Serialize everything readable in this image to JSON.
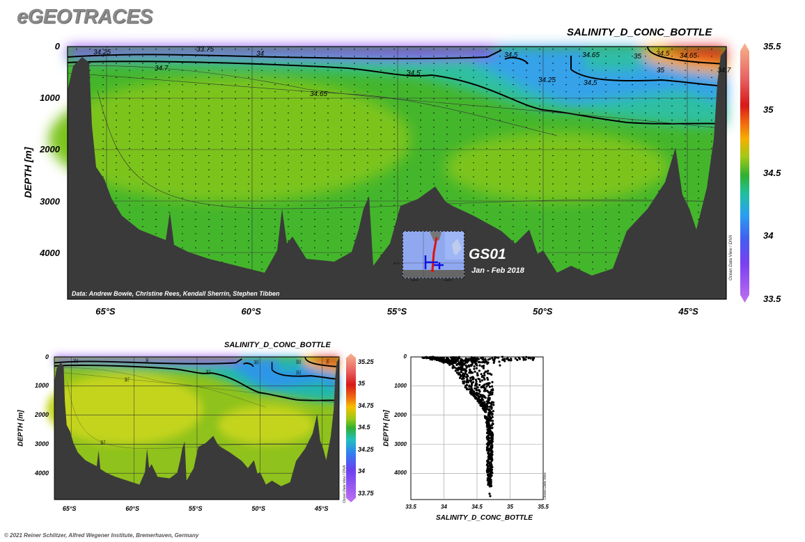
{
  "header": {
    "logo": "eGEOTRACES",
    "footer": "© 2021 Reiner Schlitzer, Alfred Wegener Institute, Bremerhaven, Germany"
  },
  "inset": {
    "cruise": "GS01",
    "dates": "Jan - Feb 2018",
    "lat_label": "60°S",
    "lon_labels": [
      "130°E",
      "150°E"
    ]
  },
  "chart_data": [
    {
      "type": "heatmap",
      "title": "SALINITY_D_CONC_BOTTLE",
      "xlabel": "",
      "ylabel": "DEPTH [m]",
      "x_ticks": [
        "65°S",
        "60°S",
        "55°S",
        "50°S",
        "45°S"
      ],
      "x_tick_values": [
        -65,
        -60,
        -55,
        -50,
        -45
      ],
      "xlim": [
        -66.3,
        -43.7
      ],
      "y_ticks": [
        0,
        1000,
        2000,
        3000,
        4000
      ],
      "ylim": [
        0,
        4900
      ],
      "colorbar": {
        "ticks": [
          "35.5",
          "35",
          "34.5",
          "34",
          "33.5"
        ],
        "range": [
          33.5,
          35.5
        ]
      },
      "contour_labels": [
        "34.25",
        "33.75",
        "34",
        "34.7",
        "34.5",
        "34.65",
        "34.5",
        "34.25",
        "34.5",
        "34.65",
        "34.5",
        "34.65",
        "35",
        "35",
        "34.7"
      ],
      "credit": "Data: Andrew Bowie, Christine Rees, Kendall Sherrin, Stephen Tibben",
      "watermark": "Ocean Data View / DIVA"
    },
    {
      "type": "heatmap",
      "title": "SALINITY_D_CONC_BOTTLE",
      "ylabel": "DEPTH [m]",
      "x_ticks": [
        "65°S",
        "60°S",
        "55°S",
        "50°S",
        "45°S"
      ],
      "x_tick_values": [
        -65,
        -60,
        -55,
        -50,
        -45
      ],
      "xlim": [
        -66.2,
        -43.6
      ],
      "y_ticks": [
        0,
        1000,
        2000,
        3000,
        4000
      ],
      "ylim": [
        0,
        4900
      ],
      "colorbar": {
        "ticks": [
          "35.25",
          "35",
          "34.75",
          "34.5",
          "34.25",
          "34",
          "33.75"
        ],
        "range": [
          33.625,
          35.375
        ]
      },
      "contour_labels": [
        "34.6",
        "34",
        "34.5",
        "34.7",
        "34.5",
        "34.6",
        "34.5",
        "35",
        "34.7"
      ],
      "watermark": "Ocean Data View / DIVA"
    },
    {
      "type": "scatter",
      "title": "",
      "xlabel": "SALINITY_D_CONC_BOTTLE",
      "ylabel": "DEPTH [m]",
      "x_ticks": [
        "33.5",
        "34",
        "34.5",
        "35",
        "35.5"
      ],
      "xlim": [
        33.5,
        35.5
      ],
      "y_ticks": [
        0,
        1000,
        2000,
        3000,
        4000
      ],
      "ylim": [
        0,
        4900
      ],
      "grid": true,
      "envelope": [
        {
          "depth": 0,
          "min": 33.6,
          "max": 35.35
        },
        {
          "depth": 100,
          "min": 33.9,
          "max": 34.78
        },
        {
          "depth": 300,
          "min": 34.1,
          "max": 34.76
        },
        {
          "depth": 600,
          "min": 34.22,
          "max": 34.76
        },
        {
          "depth": 1000,
          "min": 34.3,
          "max": 34.75
        },
        {
          "depth": 1500,
          "min": 34.5,
          "max": 34.75
        },
        {
          "depth": 1800,
          "min": 34.6,
          "max": 34.75
        },
        {
          "depth": 2500,
          "min": 34.65,
          "max": 34.74
        },
        {
          "depth": 4000,
          "min": 34.65,
          "max": 34.73
        },
        {
          "depth": 4450,
          "min": 34.66,
          "max": 34.72
        }
      ],
      "surface_branch": [
        {
          "depth": 50,
          "salinity": 35.3
        },
        {
          "depth": 100,
          "salinity": 35.15
        },
        {
          "depth": 200,
          "salinity": 34.95
        },
        {
          "depth": 300,
          "salinity": 34.83
        }
      ],
      "deep_points": [
        {
          "depth": 4700,
          "salinity": 34.69
        },
        {
          "depth": 4780,
          "salinity": 34.7
        }
      ],
      "watermark": "Ocean Data View"
    }
  ]
}
